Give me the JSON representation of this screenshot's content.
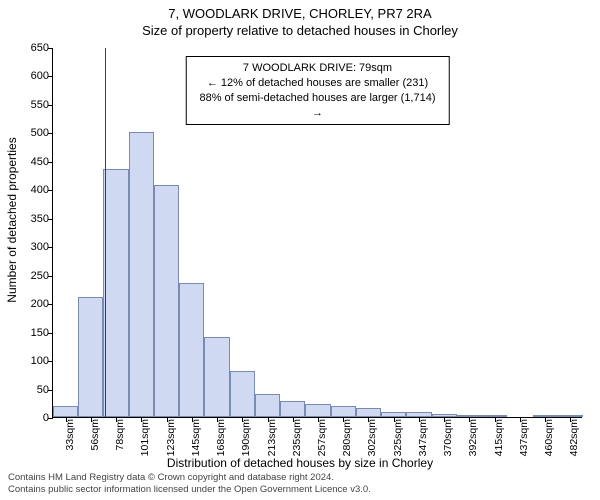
{
  "titles": {
    "line1": "7, WOODLARK DRIVE, CHORLEY, PR7 2RA",
    "line2": "Size of property relative to detached houses in Chorley"
  },
  "axes": {
    "ylabel": "Number of detached properties",
    "xlabel": "Distribution of detached houses by size in Chorley",
    "ymin": 0,
    "ymax": 650,
    "ytick_step": 50,
    "tick_fontsize": 11,
    "label_fontsize": 12
  },
  "callout": {
    "line1": "7 WOODLARK DRIVE: 79sqm",
    "line2": "← 12% of detached houses are smaller (231)",
    "line3": "88% of semi-detached houses are larger (1,714) →"
  },
  "marker": {
    "x_index": 2.05,
    "color": "#d40000"
  },
  "histogram": {
    "type": "histogram",
    "bar_fill": "#cfdaf2",
    "bar_border": "#7a8bb3",
    "background": "#ffffff",
    "categories": [
      "33sqm",
      "56sqm",
      "78sqm",
      "101sqm",
      "123sqm",
      "145sqm",
      "168sqm",
      "190sqm",
      "213sqm",
      "235sqm",
      "257sqm",
      "280sqm",
      "302sqm",
      "325sqm",
      "347sqm",
      "370sqm",
      "392sqm",
      "415sqm",
      "437sqm",
      "460sqm",
      "482sqm"
    ],
    "values": [
      20,
      210,
      435,
      500,
      408,
      235,
      140,
      80,
      40,
      28,
      22,
      20,
      15,
      8,
      8,
      6,
      4,
      2,
      0,
      3,
      2
    ]
  },
  "footer": {
    "line1": "Contains HM Land Registry data © Crown copyright and database right 2024.",
    "line2": "Contains public sector information licensed under the Open Government Licence v3.0."
  }
}
